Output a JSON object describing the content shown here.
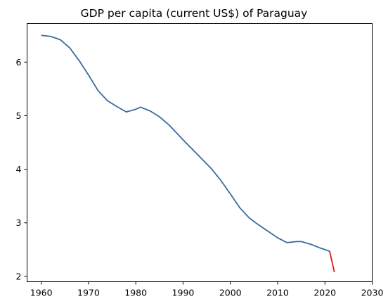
{
  "chart_data": {
    "type": "line",
    "title": "GDP per capita (current US$) of Paraguay",
    "xlabel": "",
    "ylabel": "",
    "xlim": [
      1957,
      2030
    ],
    "ylim": [
      1.9,
      6.72
    ],
    "xticks": [
      1960,
      1970,
      1980,
      1990,
      2000,
      2010,
      2020,
      2030
    ],
    "yticks": [
      2,
      3,
      4,
      5,
      6
    ],
    "grid": false,
    "series": [
      {
        "color": "#3a6aa0",
        "x": [
          1960,
          1962,
          1964,
          1966,
          1968,
          1970,
          1972,
          1974,
          1976,
          1978,
          1980,
          1981,
          1983,
          1985,
          1987,
          1990,
          1993,
          1996,
          1998,
          2000,
          2002,
          2004,
          2006,
          2008,
          2010,
          2012,
          2014,
          2015,
          2017,
          2019,
          2021
        ],
        "y": [
          6.5,
          6.48,
          6.42,
          6.27,
          6.03,
          5.76,
          5.47,
          5.28,
          5.17,
          5.07,
          5.12,
          5.16,
          5.09,
          4.98,
          4.83,
          4.55,
          4.28,
          4.01,
          3.79,
          3.54,
          3.28,
          3.09,
          2.96,
          2.84,
          2.72,
          2.63,
          2.65,
          2.65,
          2.6,
          2.53,
          2.47
        ]
      },
      {
        "color": "#e01a0d",
        "x": [
          2021,
          2022
        ],
        "y": [
          2.47,
          2.08
        ]
      }
    ]
  }
}
